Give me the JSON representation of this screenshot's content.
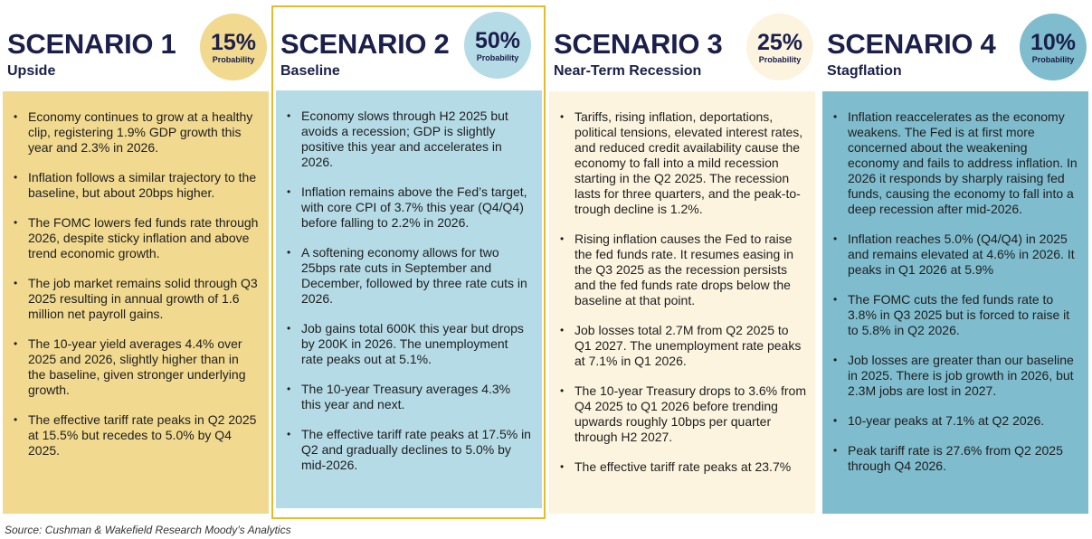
{
  "colors": {
    "scenario_1": "#f1d98f",
    "scenario_2": "#b5dbe6",
    "scenario_3": "#fcf4df",
    "scenario_4": "#7fbccd",
    "highlight_border": "#e5bb2a",
    "title_text": "#1b1f4b"
  },
  "scenarios": [
    {
      "title": "SCENARIO 1",
      "subtitle": "Upside",
      "probability": "15%",
      "probability_label": "Probability",
      "badge_color": "#f1d98f",
      "body_color": "#f1d98f",
      "bullets": [
        "Economy continues to grow at a healthy clip, registering 1.9% GDP growth this year and 2.3% in 2026.",
        "Inflation follows a similar trajectory to the baseline, but about 20bps higher.",
        "The FOMC lowers fed funds rate through 2026, despite sticky inflation and above trend economic growth.",
        "The job market remains solid through Q3 2025 resulting in annual growth of 1.6 million net payroll gains.",
        "The 10-year yield averages 4.4% over 2025 and 2026, slightly higher than in the baseline, given stronger underlying growth.",
        "The effective tariff rate peaks in Q2 2025 at 15.5% but recedes to 5.0% by Q4 2025."
      ]
    },
    {
      "title": "SCENARIO 2",
      "subtitle": "Baseline",
      "probability": "50%",
      "probability_label": "Probability",
      "badge_color": "#b5dbe6",
      "body_color": "#b5dbe6",
      "bullets": [
        "Economy slows through H2 2025 but avoids a recession; GDP is slightly positive this year and accelerates in 2026.",
        "Inflation remains above the Fed’s target, with core CPI of 3.7% this year (Q4/Q4) before falling to 2.2% in 2026.",
        "A softening economy allows for two 25bps rate cuts in September and December, followed by three rate cuts in 2026.",
        "Job gains total 600K this year but drops by 200K in 2026. The unemployment rate peaks out at 5.1%.",
        "The 10-year Treasury averages 4.3% this year and next.",
        "The effective tariff rate peaks at 17.5% in Q2 and gradually declines to 5.0% by mid-2026."
      ]
    },
    {
      "title": "SCENARIO 3",
      "subtitle": "Near-Term Recession",
      "probability": "25%",
      "probability_label": "Probability",
      "badge_color": "#fcf4df",
      "body_color": "#fcf4df",
      "bullets": [
        "Tariffs, rising inflation, deportations, political tensions, elevated interest rates, and reduced credit availability cause the economy to fall into a mild recession starting in the Q2 2025. The recession lasts for three quarters, and the peak-to-trough decline is 1.2%.",
        "Rising inflation causes the Fed to raise the fed funds rate. It resumes easing in the Q3 2025 as the recession persists and the fed funds rate drops below the baseline at that point.",
        "Job losses total 2.7M from Q2 2025 to Q1 2027. The unemployment rate peaks at 7.1% in Q1 2026.",
        "The 10-year Treasury drops to 3.6% from Q4 2025 to Q1 2026 before trending upwards roughly 10bps per quarter through H2 2027.",
        "The effective tariff rate peaks at 23.7%"
      ]
    },
    {
      "title": "SCENARIO 4",
      "subtitle": "Stagflation",
      "probability": "10%",
      "probability_label": "Probability",
      "badge_color": "#7fbccd",
      "body_color": "#7fbccd",
      "bullets": [
        "Inflation reaccelerates as the economy weakens. The Fed is at first more concerned about the weakening economy and fails to address inflation. In 2026 it responds by sharply raising fed funds, causing the economy to fall into a deep recession after mid-2026.",
        "Inflation reaches 5.0% (Q4/Q4) in 2025 and remains elevated at 4.6% in 2026. It peaks in Q1 2026 at 5.9%",
        "The FOMC cuts the fed funds rate to 3.8% in Q3 2025 but is forced to raise it to 5.8% in Q2 2026.",
        "Job losses are greater than our baseline in 2025. There is job growth in 2026, but 2.3M jobs are lost in 2027.",
        "10-year peaks at 7.1% at Q2 2026.",
        "Peak tariff rate is 27.6% from Q2 2025 through Q4 2026."
      ]
    }
  ],
  "source": "Source: Cushman & Wakefield Research Moody’s Analytics"
}
